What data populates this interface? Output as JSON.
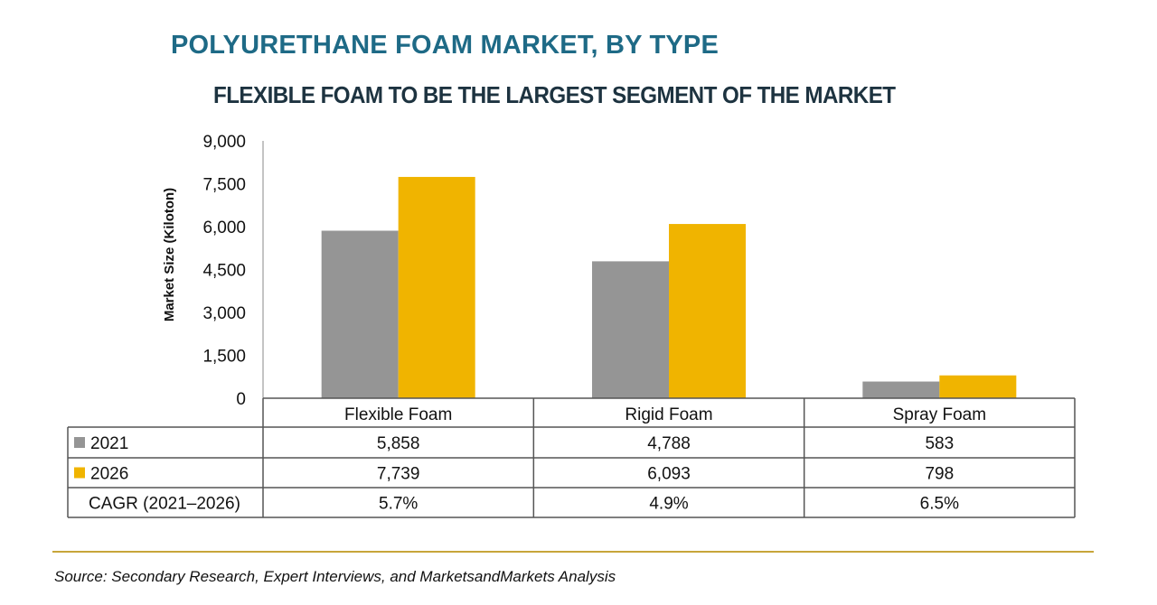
{
  "title": "POLYURETHANE FOAM MARKET, BY TYPE",
  "subtitle": "FLEXIBLE FOAM TO BE THE LARGEST SEGMENT OF THE MARKET",
  "source": "Source: Secondary Research, Expert Interviews, and MarketsandMarkets Analysis",
  "colors": {
    "2021": "#959595",
    "2026": "#f0b400",
    "title": "#1e6a86",
    "rule": "#c7a53a"
  },
  "chart_data": {
    "type": "bar",
    "ylabel": "Market Size (Kiloton)",
    "ylim": [
      0,
      9000
    ],
    "yticks": [
      "9,000",
      "7,500",
      "6,000",
      "4,500",
      "3,000",
      "1,500",
      "0"
    ],
    "ytick_values": [
      9000,
      7500,
      6000,
      4500,
      3000,
      1500,
      0
    ],
    "categories": [
      "Flexible Foam",
      "Rigid Foam",
      "Spray Foam"
    ],
    "series": [
      {
        "name": "2021",
        "values": [
          5858,
          4788,
          583
        ],
        "labels": [
          "5,858",
          "4,788",
          "583"
        ]
      },
      {
        "name": "2026",
        "values": [
          7739,
          6093,
          798
        ],
        "labels": [
          "7,739",
          "6,093",
          "798"
        ]
      }
    ],
    "table_extra_row": {
      "name": "CAGR (2021–2026)",
      "values": [
        "5.7%",
        "4.9%",
        "6.5%"
      ]
    },
    "legend": "data-table rows",
    "grid": false
  }
}
